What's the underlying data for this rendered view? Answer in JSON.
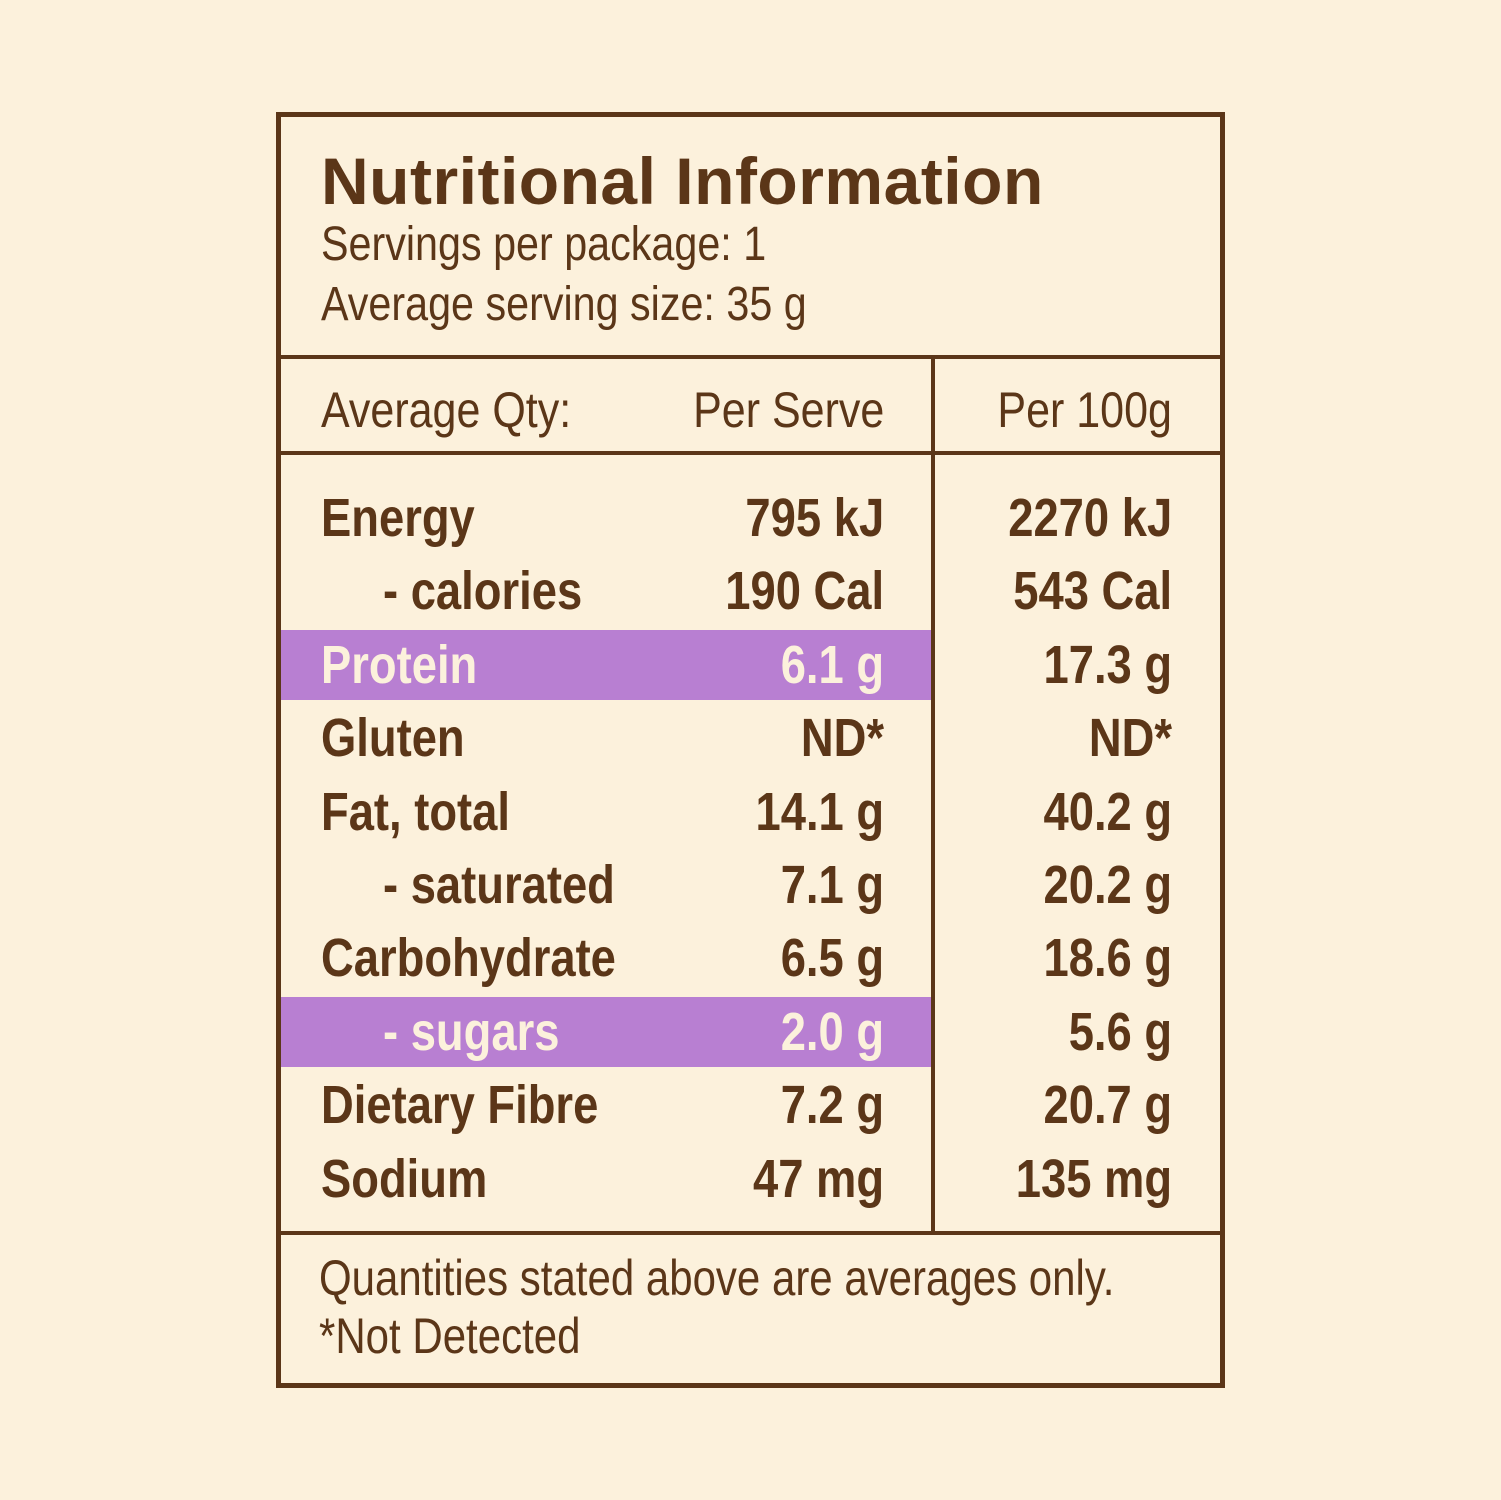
{
  "title": "Nutritional Information",
  "servings_per_package": "Servings per package: 1",
  "serving_size": "Average serving size: 35 g",
  "header": {
    "label": "Average Qty:",
    "per_serve": "Per Serve",
    "per_100g": "Per 100g"
  },
  "rows": [
    {
      "name": "Energy",
      "per_serve": "795 kJ",
      "per_100g": "2270 kJ",
      "indent": false,
      "highlight": false
    },
    {
      "name": "- calories",
      "per_serve": "190 Cal",
      "per_100g": "543 Cal",
      "indent": true,
      "highlight": false
    },
    {
      "name": "Protein",
      "per_serve": "6.1 g",
      "per_100g": "17.3 g",
      "indent": false,
      "highlight": true
    },
    {
      "name": "Gluten",
      "per_serve": "ND*",
      "per_100g": "ND*",
      "indent": false,
      "highlight": false
    },
    {
      "name": "Fat, total",
      "per_serve": "14.1 g",
      "per_100g": "40.2 g",
      "indent": false,
      "highlight": false
    },
    {
      "name": "- saturated",
      "per_serve": "7.1 g",
      "per_100g": "20.2 g",
      "indent": true,
      "highlight": false
    },
    {
      "name": "Carbohydrate",
      "per_serve": "6.5 g",
      "per_100g": "18.6 g",
      "indent": false,
      "highlight": false
    },
    {
      "name": "- sugars",
      "per_serve": "2.0 g",
      "per_100g": "5.6 g",
      "indent": true,
      "highlight": true
    },
    {
      "name": "Dietary Fibre",
      "per_serve": "7.2 g",
      "per_100g": "20.7 g",
      "indent": false,
      "highlight": false
    },
    {
      "name": "Sodium",
      "per_serve": "47 mg",
      "per_100g": "135 mg",
      "indent": false,
      "highlight": false
    }
  ],
  "footnote_1": "Quantities stated above are averages only.",
  "footnote_2": "*Not Detected",
  "colors": {
    "background": "#fcf1dc",
    "text": "#5b3618",
    "highlight": "#b87fd2"
  }
}
